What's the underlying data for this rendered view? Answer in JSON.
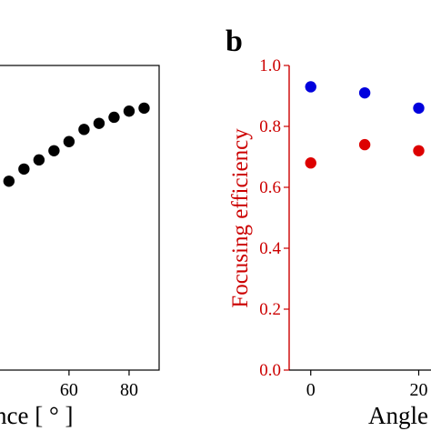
{
  "panels": {
    "b": {
      "letter": "b"
    }
  },
  "chart_data": [
    {
      "type": "scatter",
      "panel": "a",
      "title": "",
      "xlabel_visible_fragment": "nce [ ° ]",
      "ylabel": "",
      "x_ticks": [
        60,
        80
      ],
      "x_tick_labels": [
        "60",
        "80"
      ],
      "xlim": [
        34,
        90
      ],
      "ylim": [
        0,
        1
      ],
      "series": [
        {
          "color": "#000000",
          "x": [
            40,
            45,
            50,
            55,
            60,
            65,
            70,
            75,
            80,
            85
          ],
          "y": [
            0.62,
            0.66,
            0.69,
            0.72,
            0.75,
            0.79,
            0.81,
            0.83,
            0.85,
            0.86
          ]
        }
      ]
    },
    {
      "type": "scatter",
      "panel": "b",
      "title": "",
      "xlabel_visible_fragment": "Angle",
      "ylabel": "Focusing efficiency",
      "ylabel_color": "#cc0000",
      "x_ticks": [
        0,
        20
      ],
      "x_tick_labels": [
        "0",
        "20"
      ],
      "y_ticks": [
        0.0,
        0.2,
        0.4,
        0.6,
        0.8,
        1.0
      ],
      "y_tick_labels": [
        "0.0",
        "0.2",
        "0.4",
        "0.6",
        "0.8",
        "1.0"
      ],
      "xlim": [
        -4,
        28
      ],
      "ylim": [
        0,
        1
      ],
      "series": [
        {
          "color": "#0000dd",
          "x": [
            0,
            10,
            20
          ],
          "y": [
            0.93,
            0.91,
            0.86
          ]
        },
        {
          "color": "#dd0000",
          "x": [
            0,
            10,
            20
          ],
          "y": [
            0.68,
            0.74,
            0.72
          ]
        }
      ]
    }
  ]
}
